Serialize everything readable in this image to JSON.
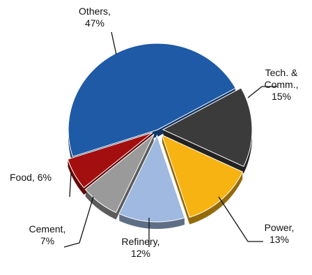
{
  "chart_data": {
    "type": "pie",
    "style": "3d-exploded",
    "slices": [
      {
        "name": "Others",
        "value": 47,
        "label_name": "Others,",
        "label_value": "47%",
        "color": "#1f5aa6"
      },
      {
        "name": "Tech. & Comm.",
        "value": 15,
        "label_name": "Tech. & Comm.,",
        "label_value": "15%",
        "color": "#3b3b3b"
      },
      {
        "name": "Power",
        "value": 13,
        "label_name": "Power,",
        "label_value": "13%",
        "color": "#f6b312"
      },
      {
        "name": "Refinery",
        "value": 12,
        "label_name": "Refinery,",
        "label_value": "12%",
        "color": "#9fb9e0"
      },
      {
        "name": "Cement",
        "value": 7,
        "label_name": "Cement,",
        "label_value": "7%",
        "color": "#9a9a9a"
      },
      {
        "name": "Food",
        "value": 6,
        "label_name": "Food, 6%",
        "label_value": "",
        "color": "#a30f0f"
      }
    ]
  }
}
